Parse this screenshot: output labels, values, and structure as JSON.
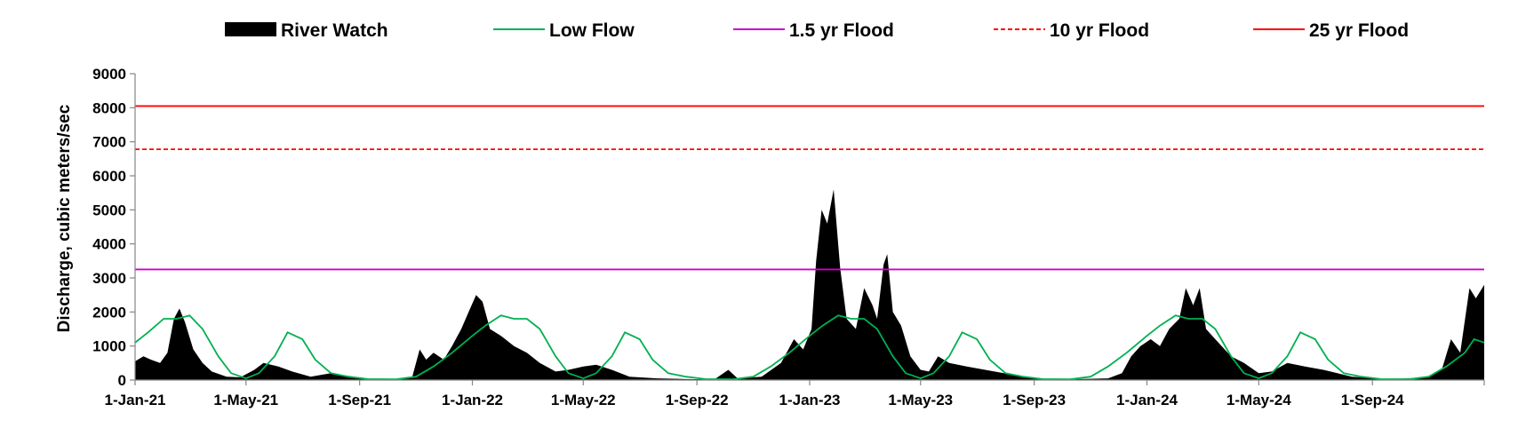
{
  "chart_data": {
    "type": "area",
    "title": "",
    "ylabel": "Discharge, cubic meters/sec",
    "xlabel": "",
    "ylim": [
      0,
      9000
    ],
    "yticks": [
      0,
      1000,
      2000,
      3000,
      4000,
      5000,
      6000,
      7000,
      8000,
      9000
    ],
    "xlim": [
      "2021-01-01",
      "2024-12-31"
    ],
    "xticks": [
      {
        "date": "2021-01-01",
        "label": "1-Jan-21"
      },
      {
        "date": "2021-05-01",
        "label": "1-May-21"
      },
      {
        "date": "2021-09-01",
        "label": "1-Sep-21"
      },
      {
        "date": "2022-01-01",
        "label": "1-Jan-22"
      },
      {
        "date": "2022-05-01",
        "label": "1-May-22"
      },
      {
        "date": "2022-09-01",
        "label": "1-Sep-22"
      },
      {
        "date": "2023-01-01",
        "label": "1-Jan-23"
      },
      {
        "date": "2023-05-01",
        "label": "1-May-23"
      },
      {
        "date": "2023-09-01",
        "label": "1-Sep-23"
      },
      {
        "date": "2024-01-01",
        "label": "1-Jan-24"
      },
      {
        "date": "2024-05-01",
        "label": "1-May-24"
      },
      {
        "date": "2024-09-01",
        "label": "1-Sep-24"
      }
    ],
    "legend_position": "top",
    "series": [
      {
        "name": "River Watch",
        "kind": "area",
        "color": "#000000",
        "points": [
          [
            "2021-01-01",
            550
          ],
          [
            "2021-01-10",
            700
          ],
          [
            "2021-01-18",
            600
          ],
          [
            "2021-01-28",
            500
          ],
          [
            "2021-02-05",
            800
          ],
          [
            "2021-02-12",
            1800
          ],
          [
            "2021-02-18",
            2100
          ],
          [
            "2021-02-24",
            1700
          ],
          [
            "2021-03-05",
            900
          ],
          [
            "2021-03-15",
            500
          ],
          [
            "2021-03-25",
            250
          ],
          [
            "2021-04-10",
            100
          ],
          [
            "2021-04-25",
            80
          ],
          [
            "2021-05-10",
            300
          ],
          [
            "2021-05-20",
            500
          ],
          [
            "2021-06-05",
            400
          ],
          [
            "2021-06-20",
            250
          ],
          [
            "2021-07-10",
            100
          ],
          [
            "2021-08-01",
            200
          ],
          [
            "2021-08-20",
            120
          ],
          [
            "2021-09-10",
            30
          ],
          [
            "2021-10-10",
            20
          ],
          [
            "2021-10-28",
            100
          ],
          [
            "2021-11-05",
            900
          ],
          [
            "2021-11-12",
            600
          ],
          [
            "2021-11-20",
            800
          ],
          [
            "2021-12-01",
            600
          ],
          [
            "2021-12-10",
            1000
          ],
          [
            "2021-12-20",
            1500
          ],
          [
            "2021-12-28",
            2000
          ],
          [
            "2022-01-05",
            2500
          ],
          [
            "2022-01-12",
            2300
          ],
          [
            "2022-01-20",
            1500
          ],
          [
            "2022-02-01",
            1300
          ],
          [
            "2022-02-15",
            1000
          ],
          [
            "2022-03-01",
            800
          ],
          [
            "2022-03-15",
            500
          ],
          [
            "2022-04-01",
            250
          ],
          [
            "2022-04-15",
            300
          ],
          [
            "2022-05-01",
            400
          ],
          [
            "2022-05-15",
            450
          ],
          [
            "2022-06-01",
            300
          ],
          [
            "2022-06-20",
            100
          ],
          [
            "2022-07-20",
            50
          ],
          [
            "2022-08-20",
            30
          ],
          [
            "2022-09-20",
            20
          ],
          [
            "2022-10-05",
            300
          ],
          [
            "2022-10-15",
            50
          ],
          [
            "2022-11-10",
            100
          ],
          [
            "2022-12-01",
            500
          ],
          [
            "2022-12-15",
            1200
          ],
          [
            "2022-12-25",
            900
          ],
          [
            "2023-01-03",
            1500
          ],
          [
            "2023-01-08",
            3500
          ],
          [
            "2023-01-14",
            5000
          ],
          [
            "2023-01-20",
            4600
          ],
          [
            "2023-01-27",
            5600
          ],
          [
            "2023-02-03",
            3300
          ],
          [
            "2023-02-10",
            1800
          ],
          [
            "2023-02-20",
            1500
          ],
          [
            "2023-03-01",
            2700
          ],
          [
            "2023-03-10",
            2200
          ],
          [
            "2023-03-15",
            1800
          ],
          [
            "2023-03-22",
            3400
          ],
          [
            "2023-03-26",
            3700
          ],
          [
            "2023-04-01",
            2000
          ],
          [
            "2023-04-10",
            1600
          ],
          [
            "2023-04-20",
            700
          ],
          [
            "2023-05-01",
            300
          ],
          [
            "2023-05-10",
            250
          ],
          [
            "2023-05-20",
            700
          ],
          [
            "2023-06-01",
            500
          ],
          [
            "2023-06-20",
            400
          ],
          [
            "2023-07-20",
            250
          ],
          [
            "2023-08-20",
            100
          ],
          [
            "2023-09-20",
            20
          ],
          [
            "2023-10-20",
            30
          ],
          [
            "2023-11-20",
            50
          ],
          [
            "2023-12-05",
            200
          ],
          [
            "2023-12-15",
            700
          ],
          [
            "2023-12-25",
            1000
          ],
          [
            "2024-01-05",
            1200
          ],
          [
            "2024-01-15",
            1000
          ],
          [
            "2024-01-25",
            1500
          ],
          [
            "2024-02-05",
            1800
          ],
          [
            "2024-02-12",
            2700
          ],
          [
            "2024-02-20",
            2200
          ],
          [
            "2024-02-27",
            2700
          ],
          [
            "2024-03-05",
            1500
          ],
          [
            "2024-03-15",
            1200
          ],
          [
            "2024-04-01",
            700
          ],
          [
            "2024-04-15",
            500
          ],
          [
            "2024-05-01",
            200
          ],
          [
            "2024-05-15",
            250
          ],
          [
            "2024-06-01",
            500
          ],
          [
            "2024-06-20",
            400
          ],
          [
            "2024-07-10",
            300
          ],
          [
            "2024-08-10",
            100
          ],
          [
            "2024-09-10",
            30
          ],
          [
            "2024-10-10",
            50
          ],
          [
            "2024-11-01",
            100
          ],
          [
            "2024-11-15",
            300
          ],
          [
            "2024-11-25",
            1200
          ],
          [
            "2024-12-05",
            800
          ],
          [
            "2024-12-15",
            2700
          ],
          [
            "2024-12-22",
            2400
          ],
          [
            "2024-12-31",
            2800
          ]
        ]
      },
      {
        "name": "Low Flow",
        "kind": "line",
        "color": "#00b050",
        "points": [
          [
            "2021-01-01",
            1100
          ],
          [
            "2021-01-15",
            1400
          ],
          [
            "2021-02-01",
            1800
          ],
          [
            "2021-02-15",
            1800
          ],
          [
            "2021-03-01",
            1900
          ],
          [
            "2021-03-15",
            1500
          ],
          [
            "2021-04-01",
            700
          ],
          [
            "2021-04-15",
            200
          ],
          [
            "2021-05-01",
            50
          ],
          [
            "2021-05-15",
            200
          ],
          [
            "2021-06-01",
            700
          ],
          [
            "2021-06-15",
            1400
          ],
          [
            "2021-07-01",
            1200
          ],
          [
            "2021-07-15",
            600
          ],
          [
            "2021-08-01",
            200
          ],
          [
            "2021-08-20",
            100
          ],
          [
            "2021-09-10",
            30
          ],
          [
            "2021-10-10",
            20
          ],
          [
            "2021-11-01",
            100
          ],
          [
            "2021-11-20",
            400
          ],
          [
            "2021-12-10",
            800
          ],
          [
            "2022-01-01",
            1300
          ],
          [
            "2022-01-15",
            1600
          ],
          [
            "2022-02-01",
            1900
          ],
          [
            "2022-02-15",
            1800
          ],
          [
            "2022-03-01",
            1800
          ],
          [
            "2022-03-15",
            1500
          ],
          [
            "2022-04-01",
            700
          ],
          [
            "2022-04-15",
            200
          ],
          [
            "2022-05-01",
            50
          ],
          [
            "2022-05-15",
            200
          ],
          [
            "2022-06-01",
            700
          ],
          [
            "2022-06-15",
            1400
          ],
          [
            "2022-07-01",
            1200
          ],
          [
            "2022-07-15",
            600
          ],
          [
            "2022-08-01",
            200
          ],
          [
            "2022-08-20",
            100
          ],
          [
            "2022-09-10",
            30
          ],
          [
            "2022-10-10",
            20
          ],
          [
            "2022-11-01",
            100
          ],
          [
            "2022-11-20",
            400
          ],
          [
            "2022-12-10",
            800
          ],
          [
            "2023-01-01",
            1300
          ],
          [
            "2023-01-15",
            1600
          ],
          [
            "2023-02-01",
            1900
          ],
          [
            "2023-02-15",
            1800
          ],
          [
            "2023-03-01",
            1800
          ],
          [
            "2023-03-15",
            1500
          ],
          [
            "2023-04-01",
            700
          ],
          [
            "2023-04-15",
            200
          ],
          [
            "2023-05-01",
            50
          ],
          [
            "2023-05-15",
            200
          ],
          [
            "2023-06-01",
            700
          ],
          [
            "2023-06-15",
            1400
          ],
          [
            "2023-07-01",
            1200
          ],
          [
            "2023-07-15",
            600
          ],
          [
            "2023-08-01",
            200
          ],
          [
            "2023-08-20",
            100
          ],
          [
            "2023-09-10",
            30
          ],
          [
            "2023-10-10",
            20
          ],
          [
            "2023-11-01",
            100
          ],
          [
            "2023-11-20",
            400
          ],
          [
            "2023-12-10",
            800
          ],
          [
            "2024-01-01",
            1300
          ],
          [
            "2024-01-15",
            1600
          ],
          [
            "2024-02-01",
            1900
          ],
          [
            "2024-02-15",
            1800
          ],
          [
            "2024-03-01",
            1800
          ],
          [
            "2024-03-15",
            1500
          ],
          [
            "2024-04-01",
            700
          ],
          [
            "2024-04-15",
            200
          ],
          [
            "2024-05-01",
            50
          ],
          [
            "2024-05-15",
            200
          ],
          [
            "2024-06-01",
            700
          ],
          [
            "2024-06-15",
            1400
          ],
          [
            "2024-07-01",
            1200
          ],
          [
            "2024-07-15",
            600
          ],
          [
            "2024-08-01",
            200
          ],
          [
            "2024-08-20",
            100
          ],
          [
            "2024-09-10",
            30
          ],
          [
            "2024-10-10",
            20
          ],
          [
            "2024-11-01",
            100
          ],
          [
            "2024-11-20",
            400
          ],
          [
            "2024-12-10",
            800
          ],
          [
            "2024-12-20",
            1200
          ],
          [
            "2024-12-31",
            1100
          ]
        ]
      },
      {
        "name": "1.5 yr Flood",
        "kind": "hline",
        "color": "#cc00cc",
        "dash": "solid",
        "value": 3250
      },
      {
        "name": "10 yr Flood",
        "kind": "hline",
        "color": "#ff0000",
        "dash": "dashed",
        "value": 6780
      },
      {
        "name": "25 yr Flood",
        "kind": "hline",
        "color": "#ff0000",
        "dash": "solid",
        "value": 8050
      }
    ]
  }
}
